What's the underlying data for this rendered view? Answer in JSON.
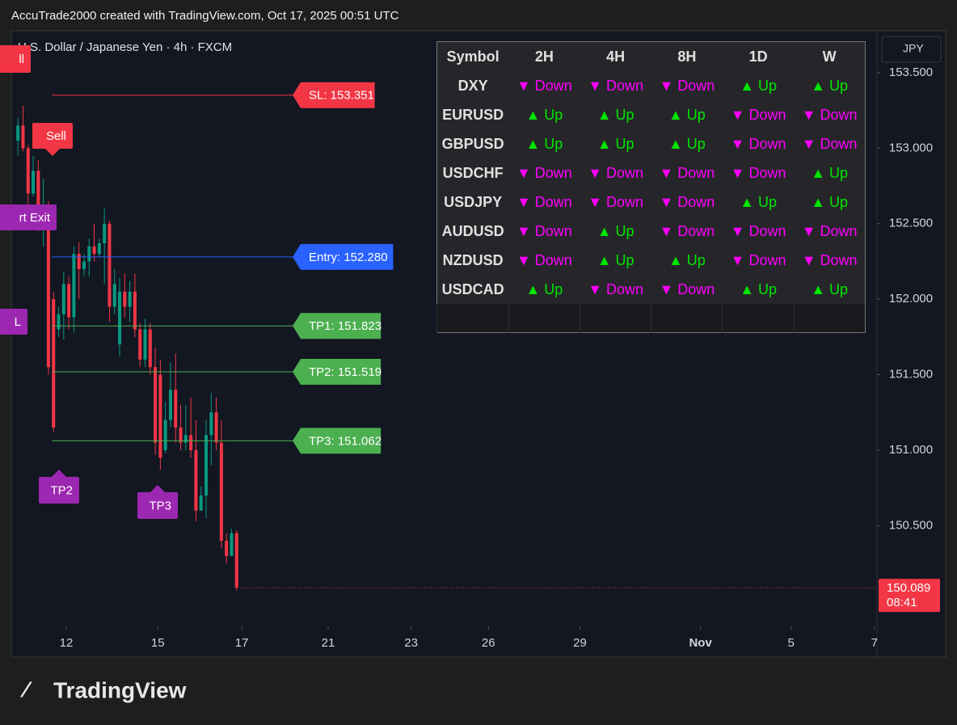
{
  "header": {
    "title": "AccuTrade2000 created with TradingView.com, Oct 17, 2025 00:51 UTC"
  },
  "chart_data": {
    "type": "candlestick",
    "title": "U.S. Dollar / Japanese Yen · 4h · FXCM",
    "currency": "JPY",
    "up_color": "#089981",
    "down_color": "#f23645",
    "open": [
      153.05,
      153.15,
      153.0,
      152.7,
      152.85,
      152.55,
      152.6,
      152.0,
      151.8,
      151.9,
      152.1,
      151.88,
      152.3,
      152.2,
      152.25,
      152.35,
      152.3,
      152.37,
      152.5,
      151.95,
      151.7,
      152.05,
      151.95,
      152.05,
      151.8,
      151.6,
      151.8,
      151.55,
      151.5,
      151.0,
      151.2,
      151.4,
      151.15,
      151.05,
      151.1,
      151.0,
      150.6,
      150.7,
      151.1,
      151.25,
      151.05,
      150.4,
      150.3,
      150.45
    ],
    "high": [
      153.2,
      153.28,
      153.02,
      152.95,
      152.92,
      152.8,
      152.65,
      152.05,
      151.95,
      152.18,
      152.15,
      152.35,
      152.38,
      152.3,
      152.4,
      152.5,
      152.4,
      152.6,
      152.52,
      152.2,
      152.14,
      152.17,
      152.12,
      152.17,
      151.84,
      151.87,
      151.84,
      151.68,
      151.6,
      151.32,
      151.58,
      151.64,
      151.3,
      151.3,
      151.35,
      151.2,
      150.76,
      151.2,
      151.38,
      151.35,
      151.2,
      150.45,
      150.48,
      150.47
    ],
    "low": [
      152.95,
      152.98,
      152.62,
      152.68,
      152.45,
      152.35,
      151.5,
      151.12,
      151.75,
      151.73,
      151.8,
      151.78,
      152.0,
      152.15,
      152.15,
      152.25,
      152.28,
      152.1,
      151.85,
      151.9,
      151.62,
      151.88,
      151.85,
      151.75,
      151.55,
      151.55,
      151.5,
      150.97,
      150.87,
      150.98,
      151.15,
      151.05,
      151.0,
      151.0,
      150.95,
      150.53,
      150.6,
      150.55,
      150.9,
      151.0,
      150.35,
      150.25,
      150.3,
      150.07
    ],
    "close": [
      153.15,
      153.0,
      152.7,
      152.85,
      152.55,
      152.6,
      151.55,
      151.15,
      151.9,
      152.1,
      151.88,
      152.3,
      152.2,
      152.25,
      152.35,
      152.3,
      152.37,
      152.5,
      151.95,
      152.1,
      152.05,
      151.95,
      152.05,
      151.8,
      151.6,
      151.8,
      151.55,
      151.05,
      150.95,
      151.2,
      151.4,
      151.15,
      151.05,
      151.1,
      151.0,
      150.6,
      150.7,
      151.1,
      151.25,
      151.05,
      150.4,
      150.3,
      150.45,
      150.089
    ],
    "xlim": [
      -1.3,
      168.9
    ],
    "xticks": [
      {
        "value": 9.5,
        "label": "12"
      },
      {
        "value": 27.5,
        "label": "15"
      },
      {
        "value": 44,
        "label": "17"
      },
      {
        "value": 61,
        "label": "21"
      },
      {
        "value": 77.3,
        "label": "23"
      },
      {
        "value": 92.5,
        "label": "26"
      },
      {
        "value": 110.5,
        "label": "29"
      },
      {
        "value": 134.2,
        "label": "Nov"
      },
      {
        "value": 152,
        "label": "5"
      },
      {
        "value": 168.4,
        "label": "7"
      }
    ],
    "ylim": [
      149.833,
      153.778
    ],
    "yticks": [
      {
        "value": 153.5,
        "label": "153.500"
      },
      {
        "value": 153,
        "label": "153.000"
      },
      {
        "value": 152.5,
        "label": "152.500"
      },
      {
        "value": 152,
        "label": "152.000"
      },
      {
        "value": 151.5,
        "label": "151.500"
      },
      {
        "value": 151,
        "label": "151.000"
      },
      {
        "value": 150.5,
        "label": "150.500"
      }
    ],
    "last_price": {
      "value": 150.089,
      "label": "150.089",
      "countdown": "08:41"
    },
    "levels": [
      {
        "text": "SL: 153.351",
        "price": 153.351,
        "color": "#f23645"
      },
      {
        "text": "Entry: 152.280",
        "price": 152.28,
        "color": "#2962ff"
      },
      {
        "text": "TP1: 151.823",
        "price": 151.823,
        "color": "#4caf50"
      },
      {
        "text": "TP2: 151.519",
        "price": 151.519,
        "color": "#4caf50"
      },
      {
        "text": "TP3: 151.062",
        "price": 151.062,
        "color": "#4caf50"
      }
    ],
    "markers": [
      {
        "text": "ll",
        "color": "#f23645"
      },
      {
        "text": "Sell",
        "color": "#f23645"
      },
      {
        "text": "rt Exit",
        "color": "#9c27b0"
      },
      {
        "text": "L",
        "color": "#9c27b0"
      },
      {
        "text": "TP2",
        "color": "#9c27b0"
      },
      {
        "text": "TP3",
        "color": "#9c27b0"
      }
    ]
  },
  "table": {
    "header": [
      "Symbol",
      "2H",
      "4H",
      "8H",
      "1D",
      "W"
    ],
    "rows": [
      [
        "DXY",
        "▼ Down",
        "▼ Down",
        "▼ Down",
        "▲ Up",
        "▲ Up"
      ],
      [
        "EURUSD",
        "▲ Up",
        "▲ Up",
        "▲ Up",
        "▼ Down",
        "▼ Down"
      ],
      [
        "GBPUSD",
        "▲ Up",
        "▲ Up",
        "▲ Up",
        "▼ Down",
        "▼ Down"
      ],
      [
        "USDCHF",
        "▼ Down",
        "▼ Down",
        "▼ Down",
        "▼ Down",
        "▲ Up"
      ],
      [
        "USDJPY",
        "▼ Down",
        "▼ Down",
        "▼ Down",
        "▲ Up",
        "▲ Up"
      ],
      [
        "AUDUSD",
        "▼ Down",
        "▲ Up",
        "▼ Down",
        "▼ Down",
        "▼ Down"
      ],
      [
        "NZDUSD",
        "▼ Down",
        "▲ Up",
        "▲ Up",
        "▼ Down",
        "▼ Down"
      ],
      [
        "USDCAD",
        "▲ Up",
        "▼ Down",
        "▼ Down",
        "▲ Up",
        "▲ Up"
      ]
    ]
  },
  "footer": {
    "brand": "TradingView"
  }
}
